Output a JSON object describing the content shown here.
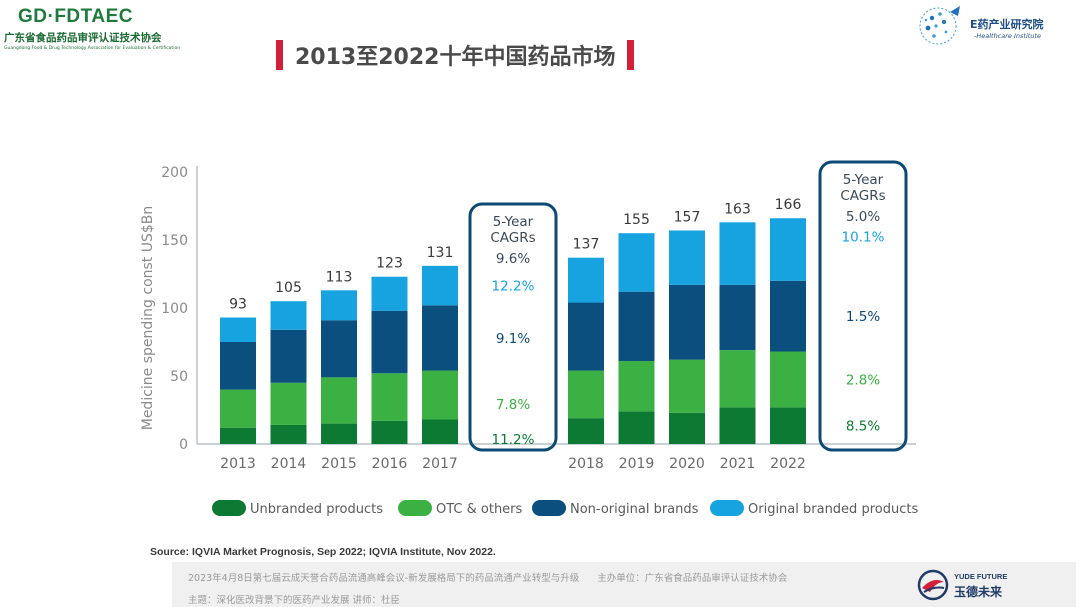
{
  "header": {
    "org_brand": "GD·FDTAEC",
    "org_cn": "广东省食品药品审评认证技术协会",
    "org_en": "Guangdong Food & Drug Technology Association for Evaluation & Certification",
    "institute_cn": "药产业研究院",
    "institute_prefix": "E",
    "institute_en": "-Healthcare Institute",
    "title": "2013至2022十年中国药品市场"
  },
  "colors": {
    "unbranded": "#0d7a33",
    "otc": "#3bb143",
    "non_original": "#0a4f7e",
    "original": "#16a3e0",
    "title_mark": "#d3203a",
    "cagr_box": "#0d4a73"
  },
  "chart_data": {
    "type": "bar",
    "stacked": true,
    "ylabel": "Medicine spending const US$Bn",
    "ylim": [
      0,
      200
    ],
    "yticks": [
      0,
      50,
      100,
      150,
      200
    ],
    "groups": [
      {
        "categories": [
          "2013",
          "2014",
          "2015",
          "2016",
          "2017"
        ],
        "totals": [
          "93",
          "105",
          "113",
          "123",
          "131"
        ],
        "series": [
          {
            "name": "Unbranded products",
            "values": [
              12,
              14,
              15,
              17,
              18
            ]
          },
          {
            "name": "OTC & others",
            "values": [
              28,
              31,
              34,
              35,
              36
            ]
          },
          {
            "name": "Non-original brands",
            "values": [
              35,
              39,
              42,
              46,
              48
            ]
          },
          {
            "name": "Original branded products",
            "values": [
              18,
              21,
              22,
              25,
              29
            ]
          }
        ],
        "cagr": {
          "title_line1": "5-Year",
          "title_line2": "CAGRs",
          "total": "9.6%",
          "original": "12.2%",
          "non_original": "9.1%",
          "otc": "7.8%",
          "unbranded": "11.2%"
        }
      },
      {
        "categories": [
          "2018",
          "2019",
          "2020",
          "2021",
          "2022"
        ],
        "totals": [
          "137",
          "155",
          "157",
          "163",
          "166"
        ],
        "series": [
          {
            "name": "Unbranded products",
            "values": [
              19,
              24,
              23,
              27,
              27
            ]
          },
          {
            "name": "OTC & others",
            "values": [
              35,
              37,
              39,
              42,
              41
            ]
          },
          {
            "name": "Non-original brands",
            "values": [
              50,
              51,
              55,
              48,
              52
            ]
          },
          {
            "name": "Original branded products",
            "values": [
              33,
              43,
              40,
              46,
              46
            ]
          }
        ],
        "cagr": {
          "title_line1": "5-Year",
          "title_line2": "CAGRs",
          "total": "5.0%",
          "original": "10.1%",
          "non_original": "1.5%",
          "otc": "2.8%",
          "unbranded": "8.5%"
        }
      }
    ],
    "legend": [
      "Unbranded products",
      "OTC & others",
      "Non-original brands",
      "Original branded products"
    ],
    "legend_position": "bottom"
  },
  "source": "Source: IQVIA Market Prognosis, Sep 2022; IQVIA Institute, Nov 2022.",
  "footer": {
    "meeting": "2023年4月8日第七届云成天誉合药品流通高峰会议-新发展格局下的药品流通产业转型与升级",
    "organizer": "主办单位：广东省食品药品审评认证技术协会",
    "topic": "主题：深化医改背景下的医药产业发展  讲师：杜臣",
    "sponsor_en": "YUDE FUTURE",
    "sponsor_cn": "玉德未来"
  }
}
